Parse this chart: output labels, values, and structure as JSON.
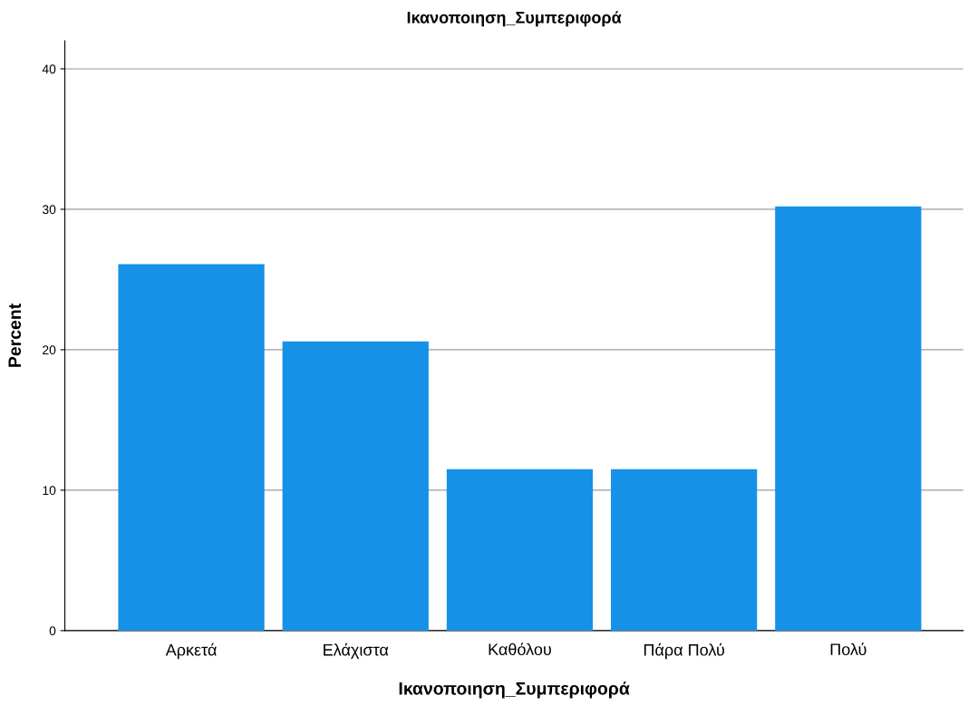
{
  "chart_data": {
    "type": "bar",
    "title": "Ικανοποιηση_Συμπεριφορά",
    "xlabel": "Ικανοποιηση_Συμπεριφορά",
    "ylabel": "Percent",
    "categories": [
      "Αρκετά",
      "Ελάχιστα",
      "Καθόλου",
      "Πάρα Πολύ",
      "Πολύ"
    ],
    "values": [
      26.1,
      20.6,
      11.5,
      11.5,
      30.2
    ],
    "color": "#1591e6",
    "ylim": [
      0,
      42
    ],
    "yticks": [
      0,
      10,
      20,
      30,
      40
    ],
    "grid": "y",
    "legend": false
  }
}
